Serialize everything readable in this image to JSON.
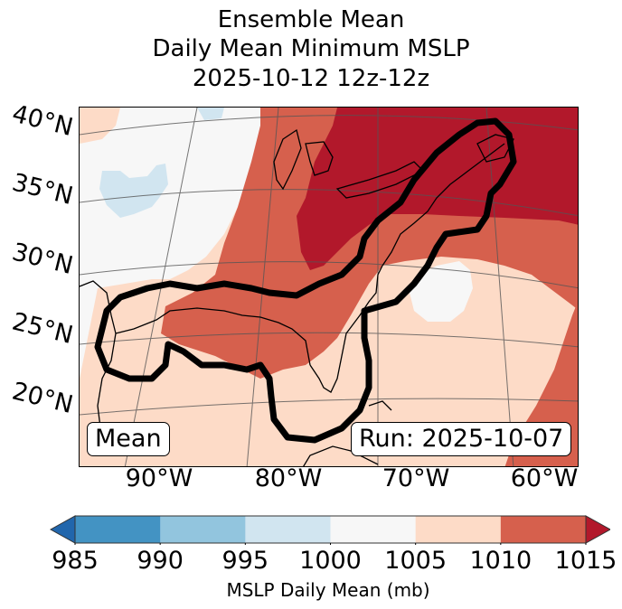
{
  "title": {
    "line1": "Ensemble Mean",
    "line2": "Daily Mean Minimum MSLP",
    "line3": "2025-10-12 12z-12z"
  },
  "map": {
    "lat_labels": [
      "40°N",
      "35°N",
      "30°N",
      "25°N",
      "20°N"
    ],
    "lon_labels": [
      "90°W",
      "80°W",
      "70°W",
      "60°W"
    ],
    "left_box": "Mean",
    "right_box": "Run: 2025-10-07",
    "regions": [
      {
        "name": "northeast-high",
        "level": "1010-1015+",
        "color": "#b2182b"
      },
      {
        "name": "gulf-southeast-band",
        "level": "1010-1015",
        "color": "#d6604d"
      },
      {
        "name": "atlantic-subtropics",
        "level": "1005-1010",
        "color": "#fddbc7"
      },
      {
        "name": "western-plains",
        "level": "1000-1005",
        "color": "#f7f7f7"
      },
      {
        "name": "plains-low-patch",
        "level": "995-1000",
        "color": "#d1e5f0"
      },
      {
        "name": "atlantic-low-patch",
        "level": "1000-1005",
        "color": "#f7f7f7"
      }
    ],
    "contour": {
      "description": "Outlined probability region from Texas coast through Gulf of Mexico and east coast to Nova Scotia",
      "color": "#000000"
    }
  },
  "colorbar": {
    "label": "MSLP Daily Mean (mb)",
    "ticks": [
      "985",
      "990",
      "995",
      "1000",
      "1005",
      "1010",
      "1015"
    ],
    "colors": [
      "#4393c3",
      "#92c5de",
      "#d1e5f0",
      "#f7f7f7",
      "#fddbc7",
      "#d6604d"
    ],
    "under_color": "#2166ac",
    "over_color": "#b2182b",
    "extend": "both"
  }
}
